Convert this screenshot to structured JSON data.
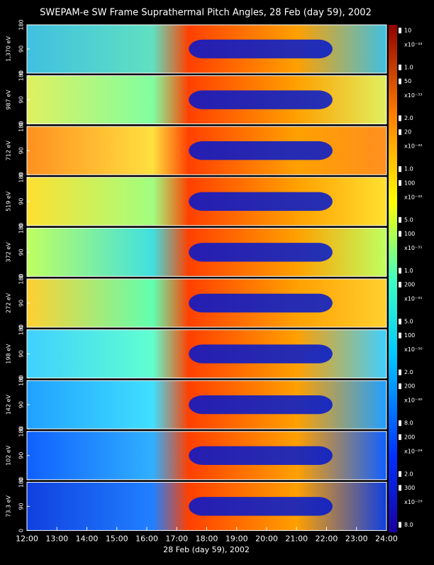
{
  "chart_data": {
    "type": "spectrogram",
    "title": "SWEPAM-e SW Frame Suprathermal Pitch Angles, 28 Feb (day  59), 2002",
    "xlabel": "28 Feb (day  59), 2002",
    "xlim": [
      12,
      24
    ],
    "xticks": [
      {
        "value": 12,
        "label": "12:00"
      },
      {
        "value": 13,
        "label": "13:00"
      },
      {
        "value": 14,
        "label": "14:00"
      },
      {
        "value": 15,
        "label": "15:00"
      },
      {
        "value": 16,
        "label": "16:00"
      },
      {
        "value": 17,
        "label": "17:00"
      },
      {
        "value": 18,
        "label": "18:00"
      },
      {
        "value": 19,
        "label": "19:00"
      },
      {
        "value": 20,
        "label": "20:00"
      },
      {
        "value": 21,
        "label": "21:00"
      },
      {
        "value": 22,
        "label": "22:00"
      },
      {
        "value": 23,
        "label": "23:00"
      },
      {
        "value": 24,
        "label": "24:00"
      }
    ],
    "ylim": [
      0,
      180
    ],
    "yticks": [
      0,
      90,
      180
    ],
    "panels": [
      {
        "label": "1,370 eV",
        "cticks": [
          {
            "value": 1,
            "label": "1.0"
          },
          10
        ],
        "cunit": "x10⁻³³"
      },
      {
        "label": "987 eV",
        "cticks": [
          {
            "value": 2,
            "label": "2.0"
          },
          50
        ],
        "cunit": "x10⁻³³"
      },
      {
        "label": "712 eV",
        "cticks": [
          {
            "value": 1,
            "label": "1.0"
          },
          20
        ],
        "cunit": "x10⁻³²"
      },
      {
        "label": "519 eV",
        "cticks": [
          {
            "value": 5,
            "label": "5.0"
          },
          100
        ],
        "cunit": "x10⁻³²"
      },
      {
        "label": "372 eV",
        "cticks": [
          {
            "value": 1,
            "label": "1.0"
          },
          100
        ],
        "cunit": "x10⁻³¹"
      },
      {
        "label": "272 eV",
        "cticks": [
          {
            "value": 5,
            "label": "5.0"
          },
          200
        ],
        "cunit": "x10⁻³¹"
      },
      {
        "label": "198 eV",
        "cticks": [
          {
            "value": 2,
            "label": "2.0"
          },
          100
        ],
        "cunit": "x10⁻³⁰"
      },
      {
        "label": "142 eV",
        "cticks": [
          {
            "value": 8,
            "label": "8.0"
          },
          200
        ],
        "cunit": "x10⁻³⁰"
      },
      {
        "label": "102 eV",
        "cticks": [
          {
            "value": 2,
            "label": "2.0"
          },
          200
        ],
        "cunit": "x10⁻²⁹"
      },
      {
        "label": "73.3 eV",
        "cticks": [
          {
            "value": 8,
            "label": "8.0"
          },
          300
        ],
        "cunit": "x10⁻²⁹"
      }
    ]
  }
}
